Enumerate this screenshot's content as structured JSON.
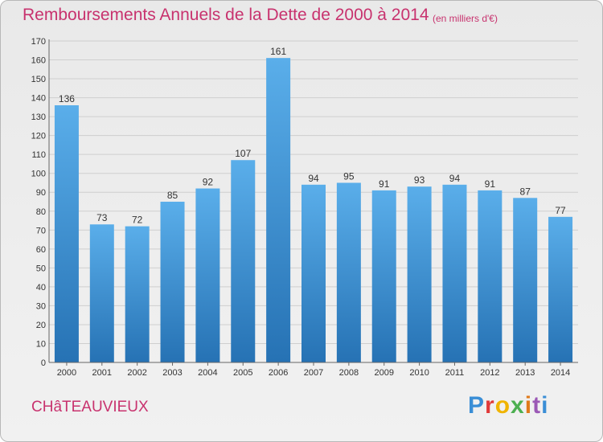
{
  "header": {
    "title": "Remboursements Annuels de la Dette de 2000 à 2014",
    "unit": "(en milliers d'€)"
  },
  "footer": {
    "commune": "CHâTEAUVIEUX",
    "logo_text": "Proxiti",
    "logo_colors": [
      "#3a8ed6",
      "#e03a3a",
      "#f0b400",
      "#4caf50",
      "#e07a1a",
      "#9b59b6",
      "#3a8ed6"
    ]
  },
  "colors": {
    "bar_top": "#5aaeea",
    "bar_bottom": "#2672b4",
    "accent": "#c8326e",
    "grid": "#cfcfcf"
  },
  "chart_data": {
    "type": "bar",
    "categories": [
      "2000",
      "2001",
      "2002",
      "2003",
      "2004",
      "2005",
      "2006",
      "2007",
      "2008",
      "2009",
      "2010",
      "2011",
      "2012",
      "2013",
      "2014"
    ],
    "values": [
      136,
      73,
      72,
      85,
      92,
      107,
      161,
      94,
      95,
      91,
      93,
      94,
      91,
      87,
      77
    ],
    "title": "Remboursements Annuels de la Dette de 2000 à 2014",
    "xlabel": "",
    "ylabel": "",
    "ylim": [
      0,
      170
    ],
    "ytick_step": 10,
    "grid": true,
    "data_labels": true
  }
}
